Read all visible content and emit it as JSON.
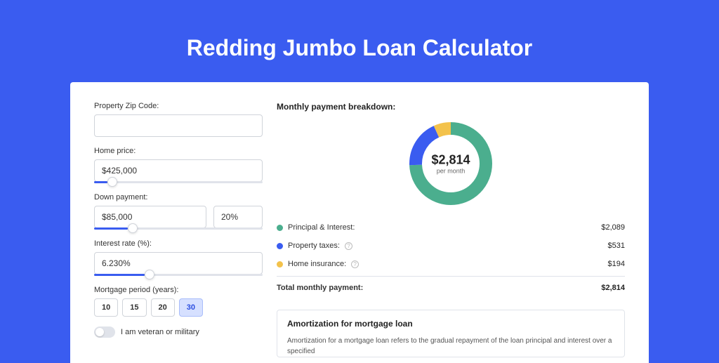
{
  "title": "Redding Jumbo Loan Calculator",
  "colors": {
    "bg": "#3a5cf0",
    "pi": "#4bae8e",
    "tax": "#3a5cf0",
    "ins": "#f3c24b"
  },
  "form": {
    "zip_label": "Property Zip Code:",
    "zip_value": "",
    "home_price_label": "Home price:",
    "home_price_value": "$425,000",
    "home_price_slider_pct": 8,
    "down_label": "Down payment:",
    "down_value": "$85,000",
    "down_pct_value": "20%",
    "down_slider_pct": 20,
    "rate_label": "Interest rate (%):",
    "rate_value": "6.230%",
    "rate_slider_pct": 30,
    "period_label": "Mortgage period (years):",
    "periods": [
      "10",
      "15",
      "20",
      "30"
    ],
    "period_active": "30",
    "veteran_label": "I am veteran or military"
  },
  "breakdown": {
    "title": "Monthly payment breakdown:",
    "total_amount": "$2,814",
    "per_month": "per month",
    "items": [
      {
        "label": "Principal & Interest:",
        "value": "$2,089",
        "numeric": 2089,
        "color": "#4bae8e"
      },
      {
        "label": "Property taxes:",
        "value": "$531",
        "numeric": 531,
        "color": "#3a5cf0",
        "info": true
      },
      {
        "label": "Home insurance:",
        "value": "$194",
        "numeric": 194,
        "color": "#f3c24b",
        "info": true
      }
    ],
    "total_label": "Total monthly payment:",
    "total_value": "$2,814",
    "donut": {
      "circumference": 314.16,
      "stroke_width": 18,
      "radius": 50,
      "segments": [
        {
          "color": "#4bae8e",
          "pct": 74.24
        },
        {
          "color": "#3a5cf0",
          "pct": 18.87
        },
        {
          "color": "#f3c24b",
          "pct": 6.89
        }
      ]
    }
  },
  "amort": {
    "title": "Amortization for mortgage loan",
    "text": "Amortization for a mortgage loan refers to the gradual repayment of the loan principal and interest over a specified"
  }
}
